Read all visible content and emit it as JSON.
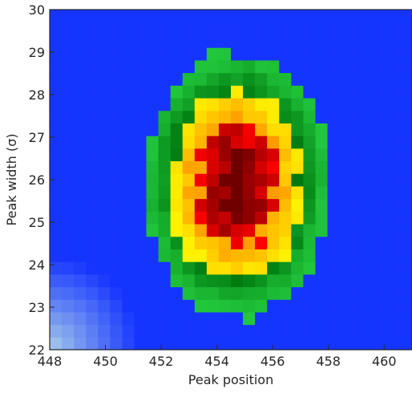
{
  "chart_data": {
    "type": "heatmap",
    "title": "",
    "xlabel": "Peak position",
    "ylabel": "Peak width (σ)",
    "xlim": [
      448,
      461
    ],
    "ylim": [
      22,
      30
    ],
    "xticks": [
      448,
      450,
      452,
      454,
      456,
      458,
      460
    ],
    "yticks": [
      22,
      23,
      24,
      25,
      26,
      27,
      28,
      29,
      30
    ],
    "grid": false,
    "colormap": {
      "description": "blue (low) → green → yellow → orange → red → dark red (high)",
      "stops": [
        "#b8dce8",
        "#1530ff",
        "#0010ff",
        "#18c83a",
        "#008a10",
        "#fff000",
        "#ffb000",
        "#ff5000",
        "#e80000",
        "#6a0000"
      ]
    },
    "distribution": {
      "shape": "elliptical 2D peak",
      "center": {
        "x": 454.7,
        "y": 25.9
      },
      "spread": {
        "x": 2.25,
        "y": 2.1
      },
      "max_value": 1.0,
      "contour_levels": {
        "green": 0.08,
        "yellow": 0.28,
        "red": 0.6
      }
    }
  }
}
